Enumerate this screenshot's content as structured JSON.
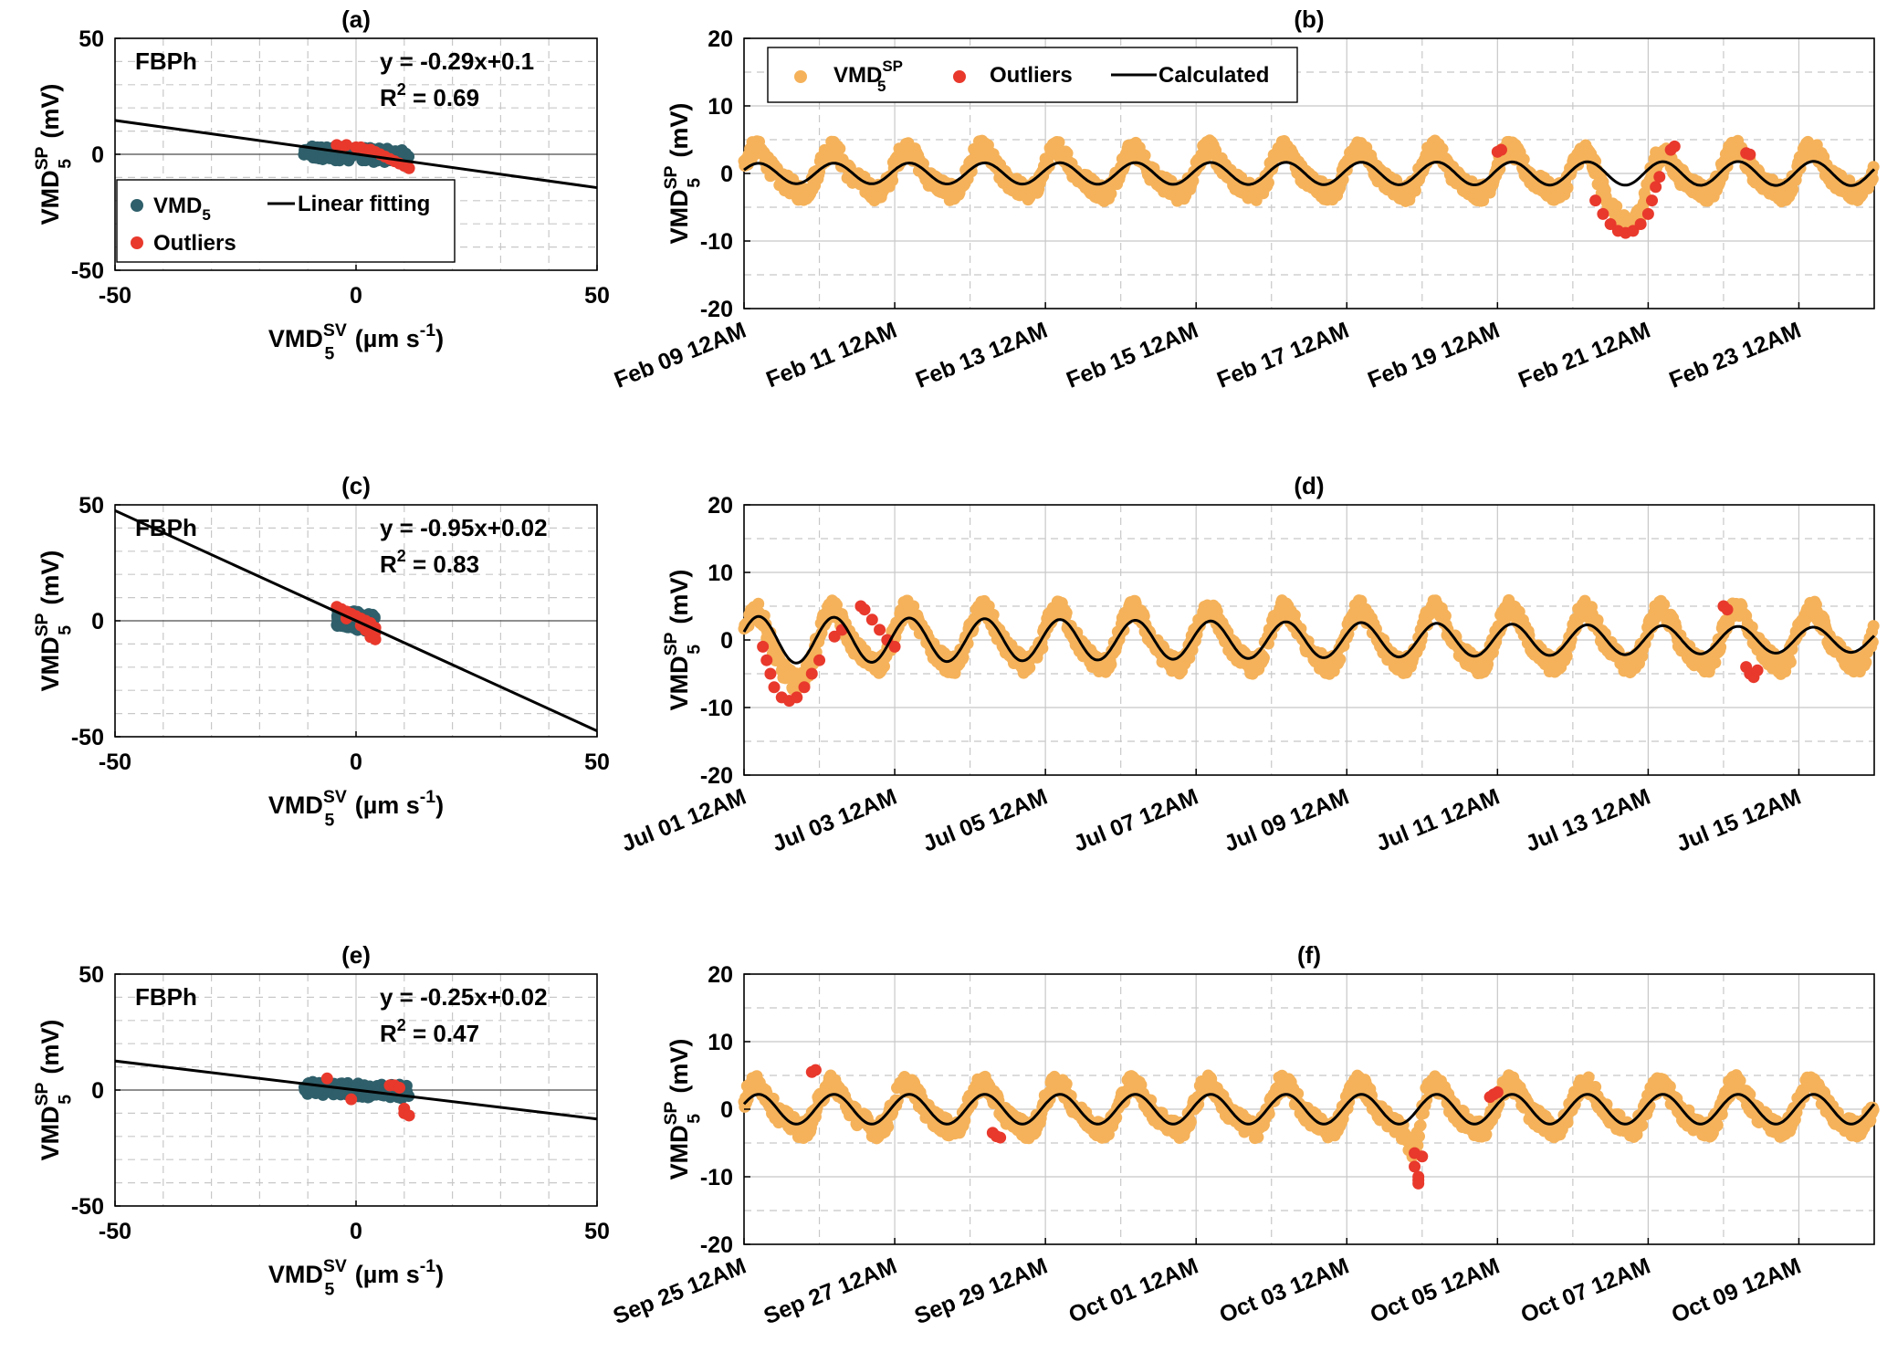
{
  "chart_data": [
    {
      "id": "a",
      "type": "scatter",
      "title": "(a)",
      "xlabel": {
        "base": "VMD",
        "sub": "5",
        "sup": "SV",
        "unit": "(µm s",
        "unit_sup": "-1",
        "unit_end": ")"
      },
      "ylabel": {
        "base": "VMD",
        "sub": "5",
        "sup": "SP",
        "unit": "(mV)"
      },
      "xlim": [
        -50,
        50
      ],
      "ylim": [
        -50,
        50
      ],
      "xticks": [
        "-50",
        "0",
        "50"
      ],
      "yticks": [
        "50",
        "0",
        "-50"
      ],
      "grid": "dashed",
      "site_label": "FBPh",
      "equation": "y = -0.29x+0.1",
      "r2_label": "R",
      "r2_sup": "2",
      "r2_value": " = 0.69",
      "fit": {
        "slope": -0.29,
        "intercept": 0.1
      },
      "legend": {
        "entries": [
          {
            "label": "VMD",
            "sub": "5",
            "type": "marker",
            "color": "#2e5f6a"
          },
          {
            "label": "Linear fitting",
            "type": "line",
            "color": "#000000"
          },
          {
            "label": "Outliers",
            "type": "marker",
            "color": "#e8392c"
          }
        ],
        "placement": "lower-left"
      },
      "series": [
        {
          "name": "VMD5",
          "color": "#2e5f6a",
          "x_range": [
            -11,
            11
          ],
          "y_range": [
            -3,
            3
          ]
        },
        {
          "name": "Outliers",
          "color": "#e8392c",
          "points": [
            [
              -4,
              4
            ],
            [
              -2,
              4
            ],
            [
              0,
              3
            ],
            [
              2,
              2
            ],
            [
              4,
              1
            ],
            [
              5,
              0
            ],
            [
              6,
              -1
            ],
            [
              7,
              -2
            ],
            [
              8,
              -3
            ],
            [
              9,
              -4
            ],
            [
              10,
              -5
            ],
            [
              11,
              -6
            ],
            [
              -3,
              3
            ],
            [
              1,
              3
            ],
            [
              3,
              2
            ]
          ]
        }
      ]
    },
    {
      "id": "b",
      "type": "line",
      "title": "(b)",
      "ylabel": {
        "base": "VMD",
        "sub": "5",
        "sup": "SP",
        "unit": "(mV)"
      },
      "ylim": [
        -20,
        20
      ],
      "yticks": [
        "20",
        "10",
        "0",
        "-10",
        "-20"
      ],
      "xrange_days": 15,
      "xticks": [
        "Feb 09 12AM",
        "Feb 11 12AM",
        "Feb 13 12AM",
        "Feb 15 12AM",
        "Feb 17 12AM",
        "Feb 19 12AM",
        "Feb 21 12AM",
        "Feb 23 12AM"
      ],
      "grid": "dashed",
      "legend": {
        "entries": [
          {
            "label": "VMD",
            "sub": "5",
            "sup": "SP",
            "type": "marker",
            "color": "#f5b25a"
          },
          {
            "label": "Outliers",
            "type": "marker",
            "color": "#e8392c"
          },
          {
            "label": "Calculated",
            "type": "line",
            "color": "#000000"
          }
        ],
        "placement": "top-left"
      },
      "calc_amp_start": 1.5,
      "calc_amp_end": 1.8,
      "obs_amp": 3.0,
      "anomaly": {
        "center_day": 11.7,
        "depth": -8.5,
        "width": 0.35
      },
      "outliers": [
        [
          10.0,
          3.2
        ],
        [
          10.05,
          3.5
        ],
        [
          11.3,
          -4
        ],
        [
          11.4,
          -6
        ],
        [
          11.5,
          -7.5
        ],
        [
          11.6,
          -8.5
        ],
        [
          11.7,
          -8.8
        ],
        [
          11.8,
          -8.5
        ],
        [
          11.9,
          -7.5
        ],
        [
          12.0,
          -6
        ],
        [
          12.05,
          -4
        ],
        [
          12.1,
          -2
        ],
        [
          12.15,
          -0.5
        ],
        [
          12.3,
          3.5
        ],
        [
          12.35,
          4.0
        ],
        [
          13.3,
          3.0
        ],
        [
          13.35,
          2.8
        ]
      ]
    },
    {
      "id": "c",
      "type": "scatter",
      "title": "(c)",
      "xlabel": {
        "base": "VMD",
        "sub": "5",
        "sup": "SV",
        "unit": "(µm s",
        "unit_sup": "-1",
        "unit_end": ")"
      },
      "ylabel": {
        "base": "VMD",
        "sub": "5",
        "sup": "SP",
        "unit": "(mV)"
      },
      "xlim": [
        -50,
        50
      ],
      "ylim": [
        -50,
        50
      ],
      "xticks": [
        "-50",
        "0",
        "50"
      ],
      "yticks": [
        "50",
        "0",
        "-50"
      ],
      "grid": "dashed",
      "site_label": "FBPh",
      "equation": "y = -0.95x+0.02",
      "r2_label": "R",
      "r2_sup": "2",
      "r2_value": " = 0.83",
      "fit": {
        "slope": -0.95,
        "intercept": 0.02
      },
      "series": [
        {
          "name": "VMD5",
          "color": "#2e5f6a",
          "x_range": [
            -4,
            4
          ],
          "y_range": [
            -4,
            4
          ]
        },
        {
          "name": "Outliers",
          "color": "#e8392c",
          "points": [
            [
              -4,
              6
            ],
            [
              -3,
              5
            ],
            [
              -2,
              4
            ],
            [
              -1,
              3
            ],
            [
              0,
              2
            ],
            [
              1,
              1
            ],
            [
              2,
              0
            ],
            [
              3,
              -1
            ],
            [
              4,
              -3
            ],
            [
              4,
              -5
            ],
            [
              3,
              -7
            ],
            [
              4,
              -8
            ],
            [
              -2,
              1
            ],
            [
              1,
              -2
            ],
            [
              2,
              -4
            ]
          ]
        }
      ]
    },
    {
      "id": "d",
      "type": "line",
      "title": "(d)",
      "ylabel": {
        "base": "VMD",
        "sub": "5",
        "sup": "SP",
        "unit": "(mV)"
      },
      "ylim": [
        -20,
        20
      ],
      "yticks": [
        "20",
        "10",
        "0",
        "-10",
        "-20"
      ],
      "xrange_days": 15,
      "xticks": [
        "Jul 01 12AM",
        "Jul 03 12AM",
        "Jul 05 12AM",
        "Jul 07 12AM",
        "Jul 09 12AM",
        "Jul 11 12AM",
        "Jul 13 12AM",
        "Jul 15 12AM"
      ],
      "grid": "dashed",
      "calc_amp_start": 3.5,
      "calc_amp_end": 1.8,
      "obs_amp": 4.0,
      "anomaly": {
        "center_day": 0.6,
        "depth": -5,
        "width": 0.3
      },
      "outliers": [
        [
          0.25,
          -1
        ],
        [
          0.3,
          -3
        ],
        [
          0.35,
          -5
        ],
        [
          0.4,
          -7
        ],
        [
          0.5,
          -8.5
        ],
        [
          0.6,
          -9
        ],
        [
          0.7,
          -8.5
        ],
        [
          0.8,
          -7
        ],
        [
          0.9,
          -5
        ],
        [
          1.0,
          -3
        ],
        [
          1.2,
          0.5
        ],
        [
          1.3,
          1.5
        ],
        [
          1.55,
          5
        ],
        [
          1.6,
          4.5
        ],
        [
          1.7,
          3
        ],
        [
          1.8,
          1.5
        ],
        [
          1.9,
          0
        ],
        [
          2.0,
          -1
        ],
        [
          13.0,
          5
        ],
        [
          13.05,
          4.5
        ],
        [
          13.3,
          -4
        ],
        [
          13.35,
          -5
        ],
        [
          13.4,
          -5.5
        ],
        [
          13.45,
          -4.5
        ]
      ]
    },
    {
      "id": "e",
      "type": "scatter",
      "title": "(e)",
      "xlabel": {
        "base": "VMD",
        "sub": "5",
        "sup": "SV",
        "unit": "(µm s",
        "unit_sup": "-1",
        "unit_end": ")"
      },
      "ylabel": {
        "base": "VMD",
        "sub": "5",
        "sup": "SP",
        "unit": "(mV)"
      },
      "xlim": [
        -50,
        50
      ],
      "ylim": [
        -50,
        50
      ],
      "xticks": [
        "-50",
        "0",
        "50"
      ],
      "yticks": [
        "50",
        "0",
        "-50"
      ],
      "grid": "dashed",
      "site_label": "FBPh",
      "equation": "y = -0.25x+0.02",
      "r2_label": "R",
      "r2_sup": "2",
      "r2_value": " = 0.47",
      "fit": {
        "slope": -0.25,
        "intercept": 0.02
      },
      "series": [
        {
          "name": "VMD5",
          "color": "#2e5f6a",
          "x_range": [
            -11,
            11
          ],
          "y_range": [
            -3,
            3
          ]
        },
        {
          "name": "Outliers",
          "color": "#e8392c",
          "points": [
            [
              -6,
              5
            ],
            [
              -1,
              -4
            ],
            [
              7,
              2
            ],
            [
              8,
              2
            ],
            [
              9,
              1
            ],
            [
              10,
              -8
            ],
            [
              10,
              -10
            ],
            [
              11,
              -11
            ]
          ]
        }
      ]
    },
    {
      "id": "f",
      "type": "line",
      "title": "(f)",
      "ylabel": {
        "base": "VMD",
        "sub": "5",
        "sup": "SP",
        "unit": "(mV)"
      },
      "ylim": [
        -20,
        20
      ],
      "yticks": [
        "20",
        "10",
        "0",
        "-10",
        "-20"
      ],
      "xrange_days": 15,
      "xticks": [
        "Sep 25 12AM",
        "Sep 27 12AM",
        "Sep 29 12AM",
        "Oct 01 12AM",
        "Oct 03 12AM",
        "Oct 05 12AM",
        "Oct 07 12AM",
        "Oct 09 12AM"
      ],
      "grid": "dashed",
      "calc_amp_start": 2.2,
      "calc_amp_end": 2.2,
      "obs_amp": 3.2,
      "anomaly": {
        "center_day": 8.9,
        "depth": -7,
        "width": 0.1
      },
      "outliers": [
        [
          0.9,
          5.5
        ],
        [
          0.95,
          5.8
        ],
        [
          3.3,
          -3.5
        ],
        [
          3.35,
          -4.0
        ],
        [
          3.4,
          -4.2
        ],
        [
          8.9,
          -6.5
        ],
        [
          8.9,
          -8.5
        ],
        [
          8.95,
          -10
        ],
        [
          8.95,
          -11
        ],
        [
          8.95,
          -10.5
        ],
        [
          9.0,
          -7
        ],
        [
          9.9,
          1.8
        ],
        [
          9.95,
          2.2
        ],
        [
          10.0,
          2.5
        ]
      ]
    }
  ]
}
